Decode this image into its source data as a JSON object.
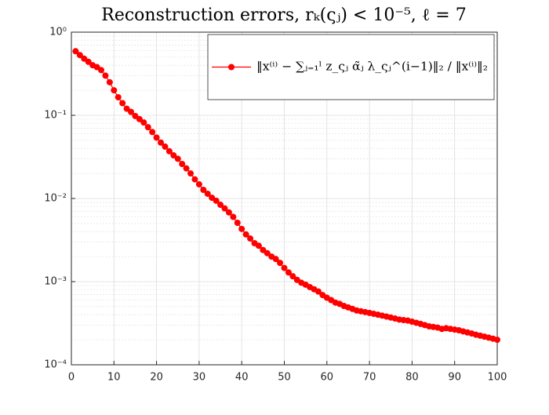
{
  "chart_data": {
    "type": "line",
    "title": "Reconstruction errors, rₖ(ςⱼ) < 10⁻⁵, ℓ = 7",
    "x": [
      1,
      2,
      3,
      4,
      5,
      6,
      7,
      8,
      9,
      10,
      11,
      12,
      13,
      14,
      15,
      16,
      17,
      18,
      19,
      20,
      21,
      22,
      23,
      24,
      25,
      26,
      27,
      28,
      29,
      30,
      31,
      32,
      33,
      34,
      35,
      36,
      37,
      38,
      39,
      40,
      41,
      42,
      43,
      44,
      45,
      46,
      47,
      48,
      49,
      50,
      51,
      52,
      53,
      54,
      55,
      56,
      57,
      58,
      59,
      60,
      61,
      62,
      63,
      64,
      65,
      66,
      67,
      68,
      69,
      70,
      71,
      72,
      73,
      74,
      75,
      76,
      77,
      78,
      79,
      80,
      81,
      82,
      83,
      84,
      85,
      86,
      87,
      88,
      89,
      90,
      91,
      92,
      93,
      94,
      95,
      96,
      97,
      98,
      99,
      100
    ],
    "series": [
      {
        "name": "‖x⁽ⁱ⁾ − ∑ⱼ₌₁ˡ z_ςⱼ α̃ⱼ λ_ςⱼ^(i−1)‖₂ / ‖x⁽ⁱ⁾‖₂",
        "color": "#ff0000",
        "values": [
          0.59,
          0.53,
          0.48,
          0.44,
          0.4,
          0.38,
          0.35,
          0.3,
          0.25,
          0.2,
          0.165,
          0.14,
          0.12,
          0.11,
          0.098,
          0.09,
          0.082,
          0.072,
          0.063,
          0.054,
          0.047,
          0.042,
          0.037,
          0.033,
          0.03,
          0.026,
          0.023,
          0.02,
          0.017,
          0.0148,
          0.0127,
          0.0114,
          0.0102,
          0.0094,
          0.0084,
          0.0076,
          0.0068,
          0.006,
          0.0051,
          0.0043,
          0.0037,
          0.0033,
          0.0029,
          0.0027,
          0.0024,
          0.0022,
          0.002,
          0.00187,
          0.00168,
          0.00146,
          0.00129,
          0.00116,
          0.00105,
          0.00097,
          0.00092,
          0.00086,
          0.00081,
          0.00076,
          0.00069,
          0.00064,
          0.0006,
          0.00056,
          0.00054,
          0.00051,
          0.00049,
          0.00047,
          0.00045,
          0.00044,
          0.00043,
          0.00042,
          0.00041,
          0.0004,
          0.00039,
          0.00038,
          0.00037,
          0.00036,
          0.00035,
          0.000345,
          0.00034,
          0.00033,
          0.00032,
          0.00031,
          0.0003,
          0.00029,
          0.000285,
          0.00028,
          0.00027,
          0.000275,
          0.00027,
          0.000265,
          0.00026,
          0.000252,
          0.000245,
          0.000238,
          0.00023,
          0.000224,
          0.000218,
          0.000212,
          0.000206,
          0.0002
        ]
      }
    ],
    "xlim": [
      0,
      100
    ],
    "xticks": [
      0,
      10,
      20,
      30,
      40,
      50,
      60,
      70,
      80,
      90,
      100
    ],
    "ylim": [
      0.0001,
      1
    ],
    "yscale": "log",
    "yticks": [
      {
        "value": 0.0001,
        "label": "10⁻⁴"
      },
      {
        "value": 0.001,
        "label": "10⁻³"
      },
      {
        "value": 0.01,
        "label": "10⁻²"
      },
      {
        "value": 0.1,
        "label": "10⁻¹"
      },
      {
        "value": 1,
        "label": "10⁰"
      }
    ],
    "grid": true,
    "minor_grid": true,
    "legend": "upper right"
  }
}
